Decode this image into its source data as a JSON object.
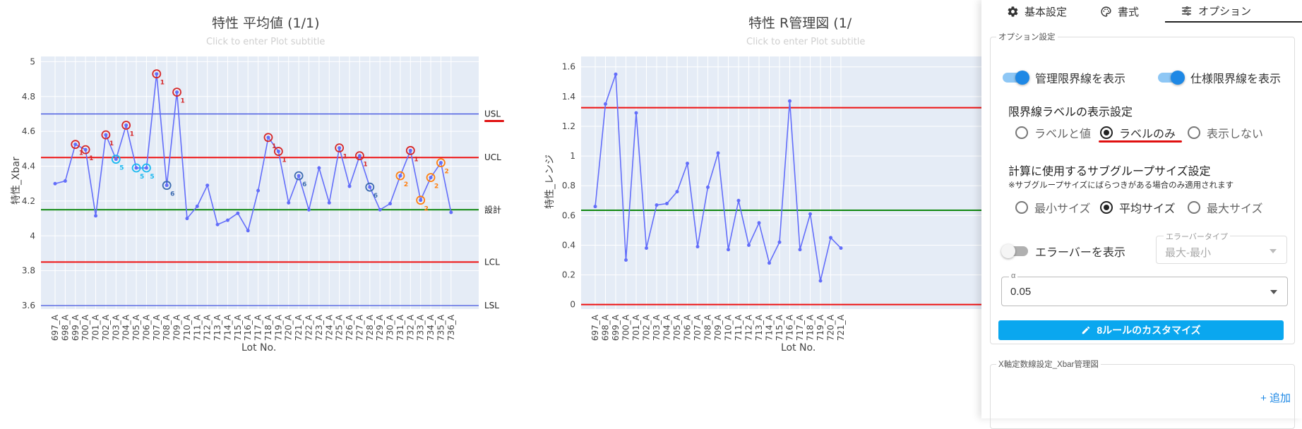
{
  "charts": {
    "xbar": {
      "title": "特性 平均値 (1/1)",
      "subtitle": "Click to enter Plot subtitle",
      "ylabel": "特性_Xbar",
      "xlabel": "Lot No."
    },
    "range": {
      "title": "特性 R管理図 (1/",
      "subtitle": "Click to enter Plot subtitle",
      "ylabel": "特性_レンジ",
      "xlabel": "Lot No."
    }
  },
  "chart_data": [
    {
      "type": "line",
      "title": "特性 平均値 (1/1)",
      "subtitle": "Click to enter Plot subtitle",
      "xlabel": "Lot No.",
      "ylabel": "特性_Xbar",
      "ylim": [
        3.58,
        5.03
      ],
      "yticks": [
        "3.6",
        "3.8",
        "4",
        "4.2",
        "4.4",
        "4.6",
        "4.8",
        "5"
      ],
      "categories": [
        "697_A",
        "698_A",
        "699_A",
        "700_A",
        "701_A",
        "702_A",
        "703_A",
        "704_A",
        "705_A",
        "706_A",
        "707_A",
        "708_A",
        "709_A",
        "710_A",
        "711_A",
        "712_A",
        "713_A",
        "714_A",
        "715_A",
        "716_A",
        "717_A",
        "718_A",
        "719_A",
        "720_A",
        "721_A",
        "722_A",
        "723_A",
        "724_A",
        "725_A",
        "726_A",
        "727_A",
        "728_A",
        "729_A",
        "730_A",
        "731_A",
        "732_A",
        "733_A",
        "734_A",
        "735_A",
        "736_A"
      ],
      "series": [
        {
          "color": "#636efa",
          "values": [
            4.3,
            4.315,
            4.525,
            4.495,
            4.115,
            4.58,
            4.44,
            4.635,
            4.39,
            4.39,
            4.93,
            4.29,
            4.825,
            4.1,
            4.17,
            4.29,
            4.065,
            4.09,
            4.13,
            4.03,
            4.26,
            4.565,
            4.485,
            4.19,
            4.345,
            4.15,
            4.39,
            4.19,
            4.505,
            4.285,
            4.46,
            4.28,
            4.15,
            4.185,
            4.345,
            4.49,
            4.205,
            4.335,
            4.42,
            4.135
          ]
        }
      ],
      "limit_lines": [
        {
          "label": "USL",
          "value": 4.7,
          "color": "#3344dd"
        },
        {
          "label": "UCL",
          "value": 4.45,
          "color": "#ee1111"
        },
        {
          "label": "設計",
          "value": 4.15,
          "color": "#118811"
        },
        {
          "label": "LCL",
          "value": 3.85,
          "color": "#ee1111"
        },
        {
          "label": "LSL",
          "value": 3.6,
          "color": "#3344dd"
        }
      ],
      "violations": [
        {
          "index": 2,
          "rule": "1",
          "color": "#d62728"
        },
        {
          "index": 3,
          "rule": "1",
          "color": "#d62728"
        },
        {
          "index": 5,
          "rule": "1",
          "color": "#d62728"
        },
        {
          "index": 6,
          "rule": "5",
          "color": "#19b9f0"
        },
        {
          "index": 7,
          "rule": "1",
          "color": "#d62728"
        },
        {
          "index": 8,
          "rule": "5",
          "color": "#19b9f0"
        },
        {
          "index": 9,
          "rule": "5",
          "color": "#19b9f0"
        },
        {
          "index": 10,
          "rule": "1",
          "color": "#d62728"
        },
        {
          "index": 11,
          "rule": "6",
          "color": "#3d6bb0"
        },
        {
          "index": 12,
          "rule": "1",
          "color": "#d62728"
        },
        {
          "index": 21,
          "rule": "1",
          "color": "#d62728"
        },
        {
          "index": 22,
          "rule": "1",
          "color": "#d62728"
        },
        {
          "index": 24,
          "rule": "6",
          "color": "#3d6bb0"
        },
        {
          "index": 28,
          "rule": "1",
          "color": "#d62728"
        },
        {
          "index": 30,
          "rule": "1",
          "color": "#d62728"
        },
        {
          "index": 31,
          "rule": "6",
          "color": "#3d6bb0"
        },
        {
          "index": 34,
          "rule": "2",
          "color": "#ff7f0e"
        },
        {
          "index": 35,
          "rule": "1",
          "color": "#d62728"
        },
        {
          "index": 36,
          "rule": "2",
          "color": "#ff7f0e"
        },
        {
          "index": 37,
          "rule": "2",
          "color": "#ff7f0e"
        },
        {
          "index": 38,
          "rule": "2",
          "color": "#ff7f0e"
        }
      ],
      "grid": true
    },
    {
      "type": "line",
      "title": "特性 R管理図 (1/",
      "subtitle": "Click to enter Plot subtitle",
      "xlabel": "Lot No.",
      "ylabel": "特性_レンジ",
      "ylim": [
        -0.03,
        1.67
      ],
      "yticks": [
        "0",
        "0.2",
        "0.4",
        "0.6",
        "0.8",
        "1",
        "1.2",
        "1.4",
        "1.6"
      ],
      "categories": [
        "697_A",
        "698_A",
        "699_A",
        "700_A",
        "701_A",
        "702_A",
        "703_A",
        "704_A",
        "705_A",
        "706_A",
        "707_A",
        "708_A",
        "709_A",
        "710_A",
        "711_A",
        "712_A",
        "713_A",
        "714_A",
        "715_A",
        "716_A",
        "717_A",
        "718_A",
        "719_A",
        "720_A",
        "721_A"
      ],
      "series": [
        {
          "color": "#636efa",
          "values": [
            0.66,
            1.35,
            1.55,
            0.3,
            1.29,
            0.38,
            0.67,
            0.68,
            0.76,
            0.95,
            0.39,
            0.79,
            1.02,
            0.37,
            0.7,
            0.4,
            0.55,
            0.28,
            0.42,
            1.37,
            0.37,
            0.61,
            0.16,
            0.45,
            0.38
          ]
        }
      ],
      "limit_lines": [
        {
          "value": 1.325,
          "color": "#ee1111"
        },
        {
          "value": 0.635,
          "color": "#118811"
        },
        {
          "value": 0.0,
          "color": "#ee1111"
        }
      ],
      "grid": true
    }
  ],
  "panel": {
    "tabs": [
      {
        "label": "基本設定",
        "icon": "gear-icon"
      },
      {
        "label": "書式",
        "icon": "palette-icon"
      },
      {
        "label": "オプション",
        "icon": "sliders-icon",
        "active": true
      }
    ],
    "options": {
      "legend": "オプション設定",
      "show_control_limits": {
        "label": "管理限界線を表示",
        "on": true
      },
      "show_spec_limits": {
        "label": "仕様限界線を表示",
        "on": true
      },
      "limit_label_heading": "限界線ラベルの表示設定",
      "limit_label_options": [
        {
          "label": "ラベルと値",
          "checked": false
        },
        {
          "label": "ラベルのみ",
          "checked": true
        },
        {
          "label": "表示しない",
          "checked": false
        }
      ],
      "subgroup_heading": "計算に使用するサブグループサイズ設定",
      "subgroup_note": "※サブグループサイズにばらつきがある場合のみ適用されます",
      "subgroup_options": [
        {
          "label": "最小サイズ",
          "checked": false
        },
        {
          "label": "平均サイズ",
          "checked": true
        },
        {
          "label": "最大サイズ",
          "checked": false
        }
      ],
      "errorbar": {
        "label": "エラーバーを表示",
        "on": false
      },
      "errorbar_type": {
        "label": "エラーバータイプ",
        "value": "最大-最小"
      },
      "alpha": {
        "label": "α",
        "value": "0.05"
      },
      "rules_button": "8ルールのカスタマイズ"
    },
    "axis_section": {
      "legend": "X軸定数線設定_Xbar管理図",
      "add_label": "+ 追加"
    }
  }
}
